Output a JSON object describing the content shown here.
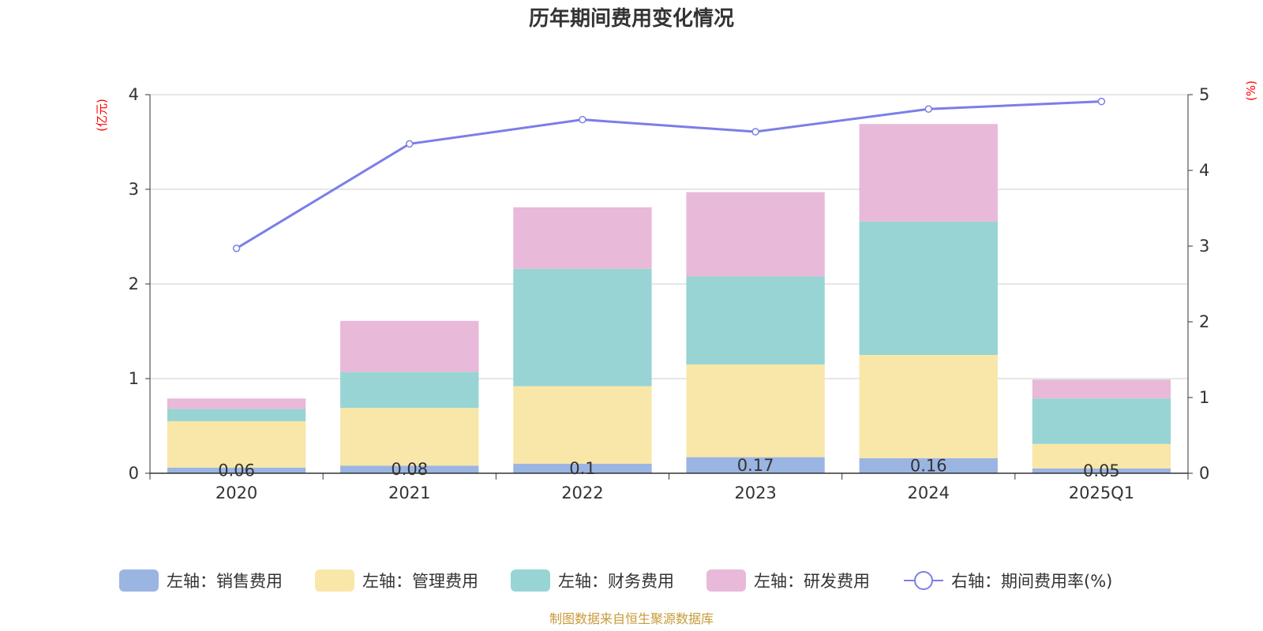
{
  "title": "历年期间费用变化情况",
  "left_unit": "(亿元)",
  "right_unit": "(%)",
  "source": "制图数据来自恒生聚源数据库",
  "chart_data": {
    "type": "bar",
    "stacked": true,
    "title": "历年期间费用变化情况",
    "categories": [
      "2020",
      "2021",
      "2022",
      "2023",
      "2024",
      "2025Q1"
    ],
    "y_left": {
      "range": [
        0,
        4
      ],
      "ticks": [
        "0",
        "1",
        "2",
        "3",
        "4"
      ],
      "unit": "(亿元)"
    },
    "y_right": {
      "range": [
        0,
        5
      ],
      "ticks": [
        "0",
        "1",
        "2",
        "3",
        "4",
        "5"
      ],
      "unit": "(%)"
    },
    "grid": true,
    "legend_position": "bottom",
    "series": [
      {
        "name": "左轴：销售费用",
        "axis": "left",
        "type": "bar",
        "color": "#9bb5e2",
        "values": [
          0.06,
          0.08,
          0.1,
          0.17,
          0.16,
          0.05
        ],
        "labels": [
          "0.06",
          "0.08",
          "0.1",
          "0.17",
          "0.16",
          "0.05"
        ]
      },
      {
        "name": "左轴：管理费用",
        "axis": "left",
        "type": "bar",
        "color": "#f8e7a8",
        "values": [
          0.49,
          0.61,
          0.82,
          0.98,
          1.09,
          0.26
        ]
      },
      {
        "name": "左轴：财务费用",
        "axis": "left",
        "type": "bar",
        "color": "#98d4d4",
        "values": [
          0.13,
          0.38,
          1.24,
          0.93,
          1.41,
          0.48
        ]
      },
      {
        "name": "左轴：研发费用",
        "axis": "left",
        "type": "bar",
        "color": "#e8b9d9",
        "values": [
          0.11,
          0.54,
          0.65,
          0.89,
          1.03,
          0.2
        ]
      },
      {
        "name": "右轴：期间费用率(%)",
        "axis": "right",
        "type": "line",
        "color": "#7b7ee8",
        "values": [
          2.97,
          4.35,
          4.67,
          4.51,
          4.81,
          4.91
        ]
      }
    ]
  }
}
